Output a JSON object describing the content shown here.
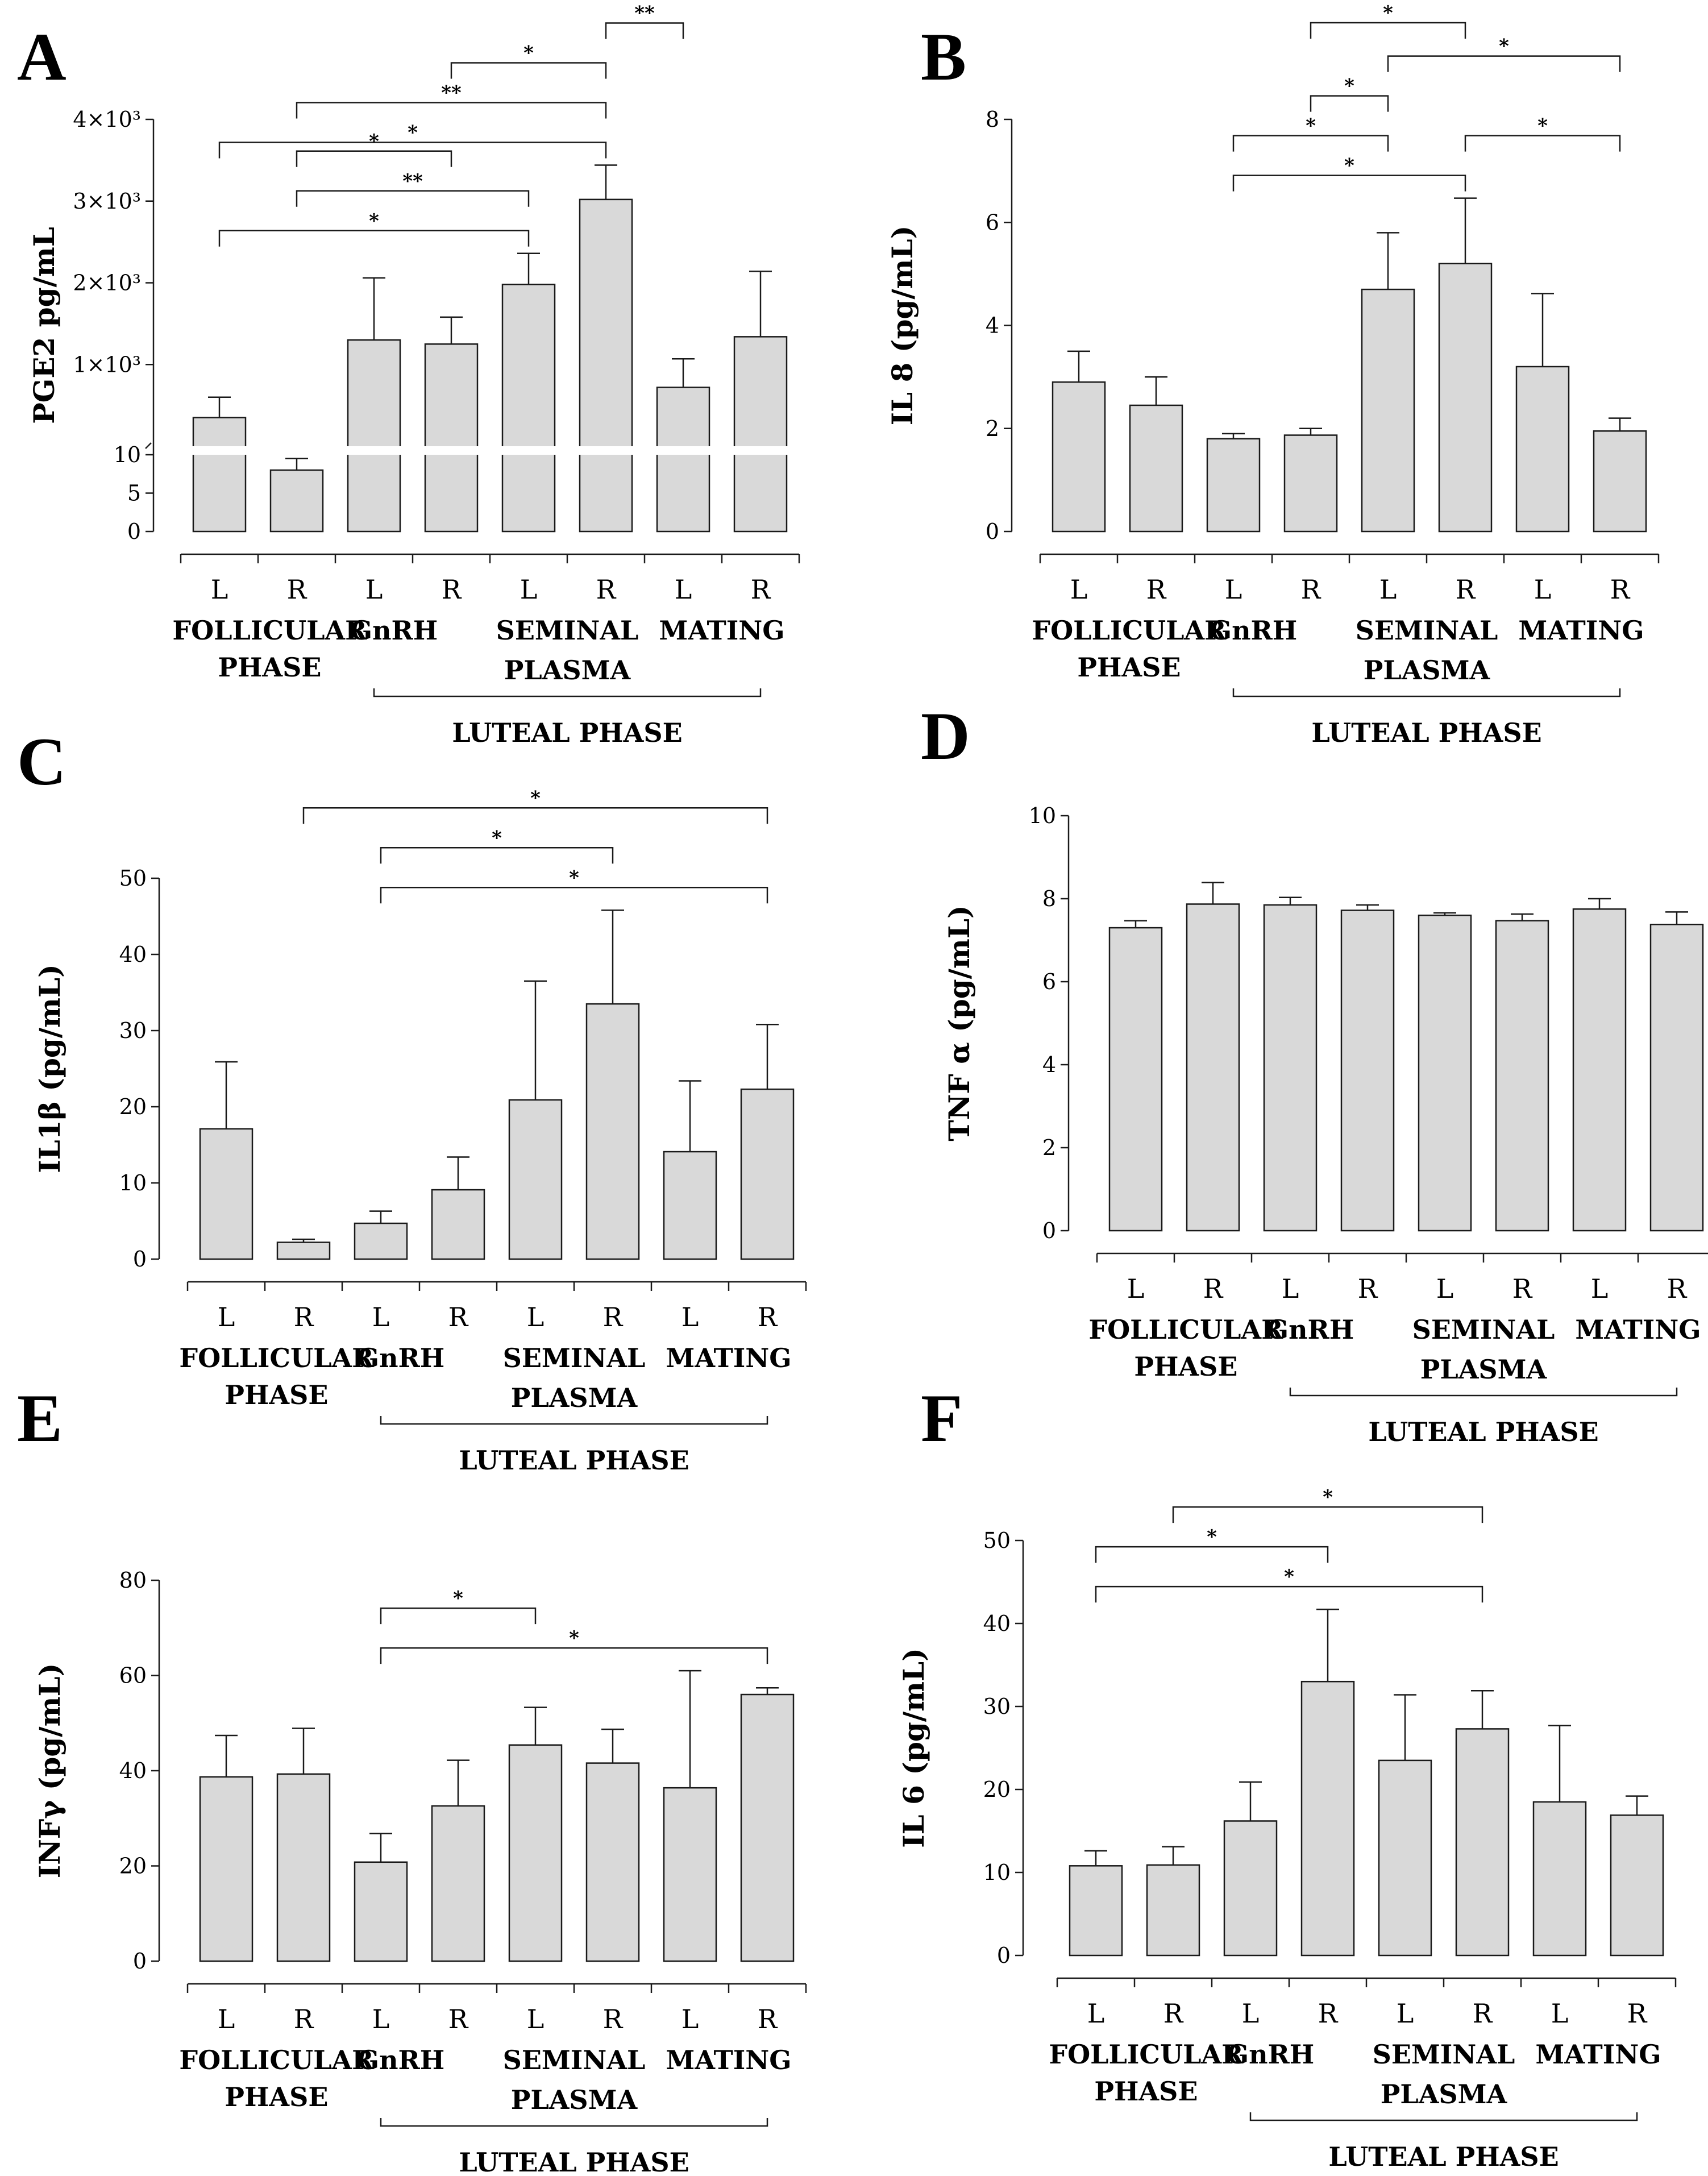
{
  "x_labels": [
    "L",
    "R",
    "L",
    "R",
    "L",
    "R",
    "L",
    "R"
  ],
  "groups": {
    "follicular": [
      "FOLLICULAR",
      "PHASE"
    ],
    "gnrh": "GnRH",
    "seminal": [
      "SEMINAL",
      "PLASMA"
    ],
    "mating": "MATING",
    "luteal": "LUTEAL PHASE"
  },
  "colors": {
    "bar_fill": "#d9d9d9",
    "bar_stroke": "#1a1a1a"
  },
  "chart_data": [
    {
      "panel": "A",
      "type": "bar",
      "ylabel": "PGE2 pg/mL",
      "categories": [
        "L",
        "R",
        "L",
        "R",
        "L",
        "R",
        "L",
        "R"
      ],
      "values": [
        350,
        8,
        1300,
        1250,
        1980,
        3020,
        720,
        1340
      ],
      "errors": [
        250,
        1.5,
        760,
        330,
        380,
        420,
        350,
        800
      ],
      "axis_break": true,
      "ylim_lower": [
        0,
        10
      ],
      "yticks_lower": [
        0,
        5,
        10
      ],
      "ylim_upper": [
        0,
        4000
      ],
      "yticks_upper": [
        {
          "value": 1000,
          "label": "1×10³"
        },
        {
          "value": 2000,
          "label": "2×10³"
        },
        {
          "value": 3000,
          "label": "3×10³"
        },
        {
          "value": 4000,
          "label": "4×10³"
        }
      ],
      "significance": [
        {
          "from": 0,
          "to": 5,
          "label": "*"
        },
        {
          "from": 1,
          "to": 5,
          "label": "**"
        },
        {
          "from": 3,
          "to": 5,
          "label": "*"
        },
        {
          "from": 5,
          "to": 6,
          "label": "**"
        },
        {
          "from": 0,
          "to": 4,
          "label": "*"
        },
        {
          "from": 1,
          "to": 4,
          "label": "**"
        },
        {
          "from": 1,
          "to": 3,
          "label": "*"
        }
      ]
    },
    {
      "panel": "B",
      "type": "bar",
      "ylabel": "IL 8  (pg/mL)",
      "categories": [
        "L",
        "R",
        "L",
        "R",
        "L",
        "R",
        "L",
        "R"
      ],
      "values": [
        2.9,
        2.45,
        1.8,
        1.87,
        4.7,
        5.2,
        3.2,
        1.95
      ],
      "errors": [
        0.6,
        0.55,
        0.1,
        0.13,
        1.1,
        1.27,
        1.42,
        0.25
      ],
      "ylim": [
        0,
        8
      ],
      "yticks": [
        0,
        2,
        4,
        6,
        8
      ],
      "significance": [
        {
          "from": 2,
          "to": 5,
          "label": "*"
        },
        {
          "from": 2,
          "to": 4,
          "label": "*"
        },
        {
          "from": 3,
          "to": 4,
          "label": "*"
        },
        {
          "from": 4,
          "to": 7,
          "label": "*"
        },
        {
          "from": 3,
          "to": 5,
          "label": "*"
        },
        {
          "from": 5,
          "to": 7,
          "label": "*"
        }
      ]
    },
    {
      "panel": "C",
      "type": "bar",
      "ylabel": "IL1β (pg/mL)",
      "categories": [
        "L",
        "R",
        "L",
        "R",
        "L",
        "R",
        "L",
        "R"
      ],
      "values": [
        17.1,
        2.2,
        4.7,
        9.1,
        20.9,
        33.5,
        14.1,
        22.3
      ],
      "errors": [
        8.8,
        0.4,
        1.6,
        4.3,
        15.6,
        12.3,
        9.3,
        8.5
      ],
      "ylim": [
        0,
        50
      ],
      "yticks": [
        0,
        10,
        20,
        30,
        40,
        50
      ],
      "significance": [
        {
          "from": 2,
          "to": 7,
          "label": "*"
        },
        {
          "from": 2,
          "to": 5,
          "label": "*"
        },
        {
          "from": 1,
          "to": 7,
          "label": "*"
        }
      ]
    },
    {
      "panel": "D",
      "type": "bar",
      "ylabel": "TNF α (pg/mL)",
      "categories": [
        "L",
        "R",
        "L",
        "R",
        "L",
        "R",
        "L",
        "R"
      ],
      "values": [
        7.3,
        7.87,
        7.85,
        7.72,
        7.6,
        7.47,
        7.75,
        7.38
      ],
      "errors": [
        0.17,
        0.52,
        0.18,
        0.13,
        0.06,
        0.16,
        0.25,
        0.3
      ],
      "ylim": [
        0,
        10
      ],
      "yticks": [
        0,
        2,
        4,
        6,
        8,
        10
      ],
      "significance": []
    },
    {
      "panel": "E",
      "type": "bar",
      "ylabel": "INFγ (pg/mL)",
      "categories": [
        "L",
        "R",
        "L",
        "R",
        "L",
        "R",
        "L",
        "R"
      ],
      "values": [
        38.7,
        39.3,
        20.8,
        32.6,
        45.4,
        41.6,
        36.4,
        56
      ],
      "errors": [
        8.7,
        9.6,
        6,
        9.6,
        7.9,
        7.1,
        24.6,
        1.4
      ],
      "ylim": [
        0,
        80
      ],
      "yticks": [
        0,
        20,
        40,
        60,
        80
      ],
      "significance": [
        {
          "from": 2,
          "to": 7,
          "label": "*"
        },
        {
          "from": 2,
          "to": 4,
          "label": "*"
        }
      ]
    },
    {
      "panel": "F",
      "type": "bar",
      "ylabel": "IL 6 (pg/mL)",
      "categories": [
        "L",
        "R",
        "L",
        "R",
        "L",
        "R",
        "L",
        "R"
      ],
      "values": [
        10.8,
        10.9,
        16.2,
        33,
        23.5,
        27.3,
        18.5,
        16.9
      ],
      "errors": [
        1.8,
        2.2,
        4.7,
        8.7,
        7.9,
        4.6,
        9.2,
        2.3
      ],
      "ylim": [
        0,
        50
      ],
      "yticks": [
        0,
        10,
        20,
        30,
        40,
        50
      ],
      "significance": [
        {
          "from": 0,
          "to": 5,
          "label": "*"
        },
        {
          "from": 0,
          "to": 3,
          "label": "*"
        },
        {
          "from": 1,
          "to": 5,
          "label": "*"
        }
      ]
    }
  ]
}
